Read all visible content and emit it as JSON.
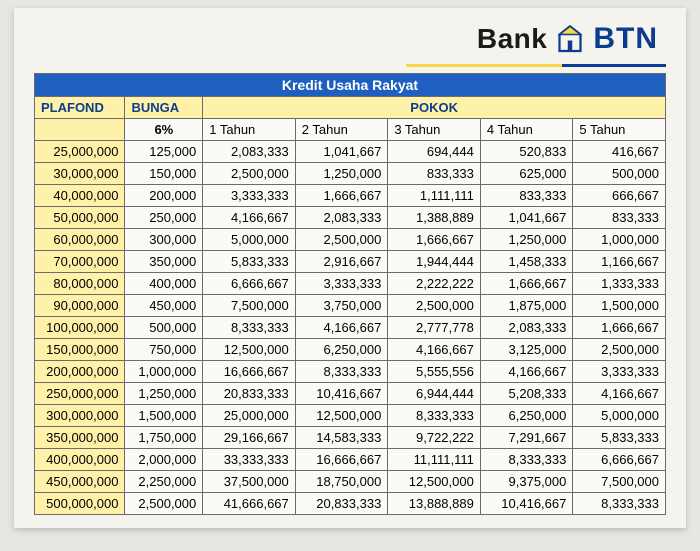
{
  "logo": {
    "word_bank": "Bank",
    "word_btn": "BTN",
    "icon_name": "bank-btn-logo",
    "brand_blue": "#0a3d8f",
    "brand_yellow": "#f7d64a"
  },
  "table": {
    "title": "Kredit Usaha Rakyat",
    "headers": {
      "plafond": "PLAFOND",
      "bunga": "BUNGA",
      "pokok": "POKOK",
      "rate": "6%",
      "periods": [
        "1 Tahun",
        "2 Tahun",
        "3 Tahun",
        "4 Tahun",
        "5 Tahun"
      ]
    },
    "header_bg": "#fff2a8",
    "title_bg": "#1f5fbf",
    "border_color": "#6b6b6b",
    "font_size": 13,
    "rows": [
      {
        "plafond": "25,000,000",
        "bunga": "125,000",
        "p": [
          "2,083,333",
          "1,041,667",
          "694,444",
          "520,833",
          "416,667"
        ]
      },
      {
        "plafond": "30,000,000",
        "bunga": "150,000",
        "p": [
          "2,500,000",
          "1,250,000",
          "833,333",
          "625,000",
          "500,000"
        ]
      },
      {
        "plafond": "40,000,000",
        "bunga": "200,000",
        "p": [
          "3,333,333",
          "1,666,667",
          "1,111,111",
          "833,333",
          "666,667"
        ]
      },
      {
        "plafond": "50,000,000",
        "bunga": "250,000",
        "p": [
          "4,166,667",
          "2,083,333",
          "1,388,889",
          "1,041,667",
          "833,333"
        ]
      },
      {
        "plafond": "60,000,000",
        "bunga": "300,000",
        "p": [
          "5,000,000",
          "2,500,000",
          "1,666,667",
          "1,250,000",
          "1,000,000"
        ]
      },
      {
        "plafond": "70,000,000",
        "bunga": "350,000",
        "p": [
          "5,833,333",
          "2,916,667",
          "1,944,444",
          "1,458,333",
          "1,166,667"
        ]
      },
      {
        "plafond": "80,000,000",
        "bunga": "400,000",
        "p": [
          "6,666,667",
          "3,333,333",
          "2,222,222",
          "1,666,667",
          "1,333,333"
        ]
      },
      {
        "plafond": "90,000,000",
        "bunga": "450,000",
        "p": [
          "7,500,000",
          "3,750,000",
          "2,500,000",
          "1,875,000",
          "1,500,000"
        ]
      },
      {
        "plafond": "100,000,000",
        "bunga": "500,000",
        "p": [
          "8,333,333",
          "4,166,667",
          "2,777,778",
          "2,083,333",
          "1,666,667"
        ]
      },
      {
        "plafond": "150,000,000",
        "bunga": "750,000",
        "p": [
          "12,500,000",
          "6,250,000",
          "4,166,667",
          "3,125,000",
          "2,500,000"
        ]
      },
      {
        "plafond": "200,000,000",
        "bunga": "1,000,000",
        "p": [
          "16,666,667",
          "8,333,333",
          "5,555,556",
          "4,166,667",
          "3,333,333"
        ]
      },
      {
        "plafond": "250,000,000",
        "bunga": "1,250,000",
        "p": [
          "20,833,333",
          "10,416,667",
          "6,944,444",
          "5,208,333",
          "4,166,667"
        ]
      },
      {
        "plafond": "300,000,000",
        "bunga": "1,500,000",
        "p": [
          "25,000,000",
          "12,500,000",
          "8,333,333",
          "6,250,000",
          "5,000,000"
        ]
      },
      {
        "plafond": "350,000,000",
        "bunga": "1,750,000",
        "p": [
          "29,166,667",
          "14,583,333",
          "9,722,222",
          "7,291,667",
          "5,833,333"
        ]
      },
      {
        "plafond": "400,000,000",
        "bunga": "2,000,000",
        "p": [
          "33,333,333",
          "16,666,667",
          "11,111,111",
          "8,333,333",
          "6,666,667"
        ]
      },
      {
        "plafond": "450,000,000",
        "bunga": "2,250,000",
        "p": [
          "37,500,000",
          "18,750,000",
          "12,500,000",
          "9,375,000",
          "7,500,000"
        ]
      },
      {
        "plafond": "500,000,000",
        "bunga": "2,500,000",
        "p": [
          "41,666,667",
          "20,833,333",
          "13,888,889",
          "10,416,667",
          "8,333,333"
        ]
      }
    ]
  }
}
